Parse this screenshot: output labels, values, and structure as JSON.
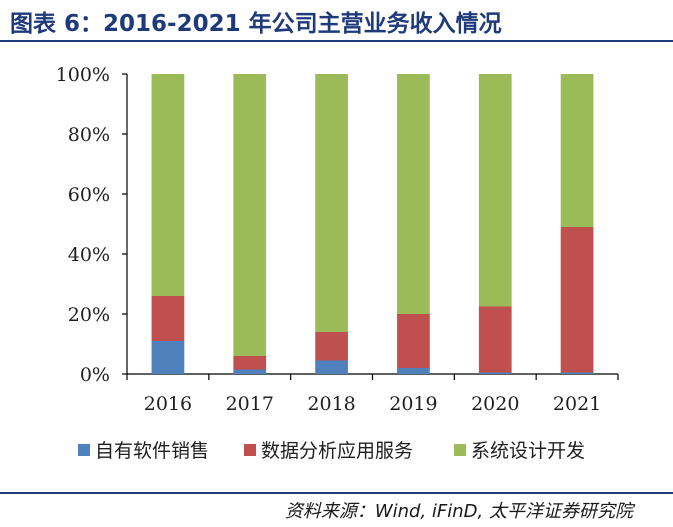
{
  "title": "图表 6：2016-2021 年公司主营业务收入情况",
  "source": "资料来源：Wind, iFinD, 太平洋证券研究院",
  "chart_data": {
    "type": "bar",
    "stacked": true,
    "categories": [
      "2016",
      "2017",
      "2018",
      "2019",
      "2020",
      "2021"
    ],
    "series": [
      {
        "name": "自有软件销售",
        "color": "#4f81bd",
        "values": [
          11,
          1.5,
          4.5,
          2,
          0.5,
          0.5
        ]
      },
      {
        "name": "数据分析应用服务",
        "color": "#c0504d",
        "values": [
          15,
          4.5,
          9.5,
          18,
          22,
          48.5
        ]
      },
      {
        "name": "系统设计开发",
        "color": "#9bbb59",
        "values": [
          74,
          94,
          86,
          80,
          77.5,
          51
        ]
      }
    ],
    "ylim": [
      0,
      100
    ],
    "yticks": [
      "0%",
      "20%",
      "40%",
      "60%",
      "80%",
      "100%"
    ],
    "grid": false,
    "legend": "bottom"
  }
}
